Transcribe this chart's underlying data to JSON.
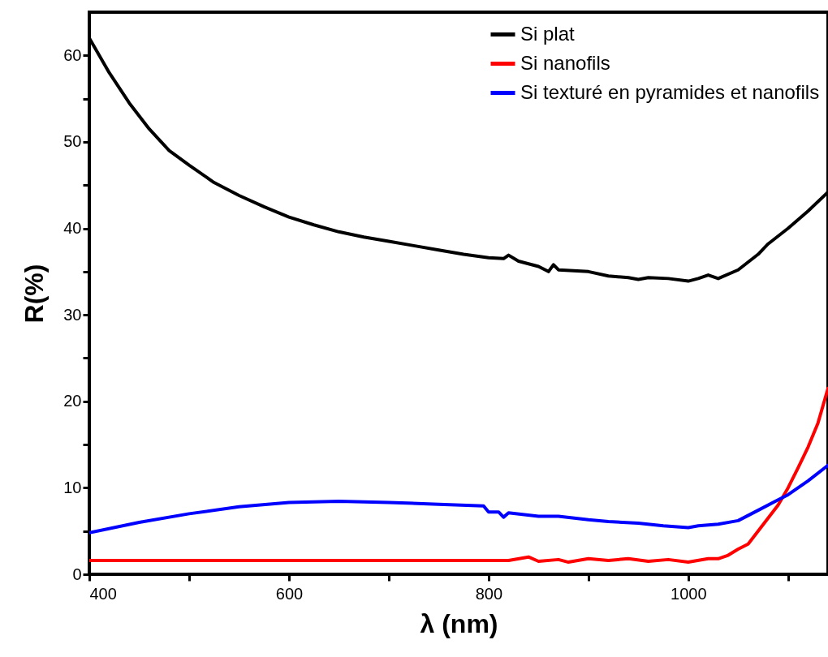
{
  "chart_data": {
    "type": "line",
    "xlabel": "λ (nm)",
    "ylabel": "R(%)",
    "xlim": [
      400,
      1140
    ],
    "ylim": [
      0,
      65
    ],
    "xticks": [
      400,
      {
        "value": 500,
        "label": null
      },
      600,
      {
        "value": 700,
        "label": null
      },
      800,
      {
        "value": 900,
        "label": null
      },
      1000,
      {
        "value": 1100,
        "label": null
      }
    ],
    "yticks": [
      0,
      {
        "value": 5,
        "label": null
      },
      10,
      {
        "value": 15,
        "label": null
      },
      20,
      {
        "value": 25,
        "label": null
      },
      30,
      {
        "value": 35,
        "label": null
      },
      40,
      {
        "value": 45,
        "label": null
      },
      50,
      {
        "value": 55,
        "label": null
      },
      60
    ],
    "legend": "top right",
    "grid": false,
    "line_style": "solid",
    "series": [
      {
        "name": "Si plat",
        "color": "#000000",
        "x": [
          400,
          420,
          440,
          460,
          480,
          500,
          525,
          550,
          575,
          600,
          625,
          650,
          675,
          700,
          725,
          750,
          775,
          800,
          815,
          820,
          830,
          850,
          860,
          865,
          870,
          900,
          920,
          940,
          950,
          960,
          980,
          1000,
          1010,
          1020,
          1030,
          1050,
          1070,
          1080,
          1100,
          1120,
          1140
        ],
        "values": [
          62,
          58,
          54.5,
          51.5,
          49,
          47.3,
          45.3,
          43.8,
          42.5,
          41.3,
          40.4,
          39.6,
          39,
          38.5,
          38,
          37.5,
          37,
          36.6,
          36.5,
          36.9,
          36.2,
          35.6,
          35,
          35.8,
          35.2,
          35,
          34.5,
          34.3,
          34.1,
          34.3,
          34.2,
          33.9,
          34.2,
          34.6,
          34.2,
          35.2,
          37,
          38.2,
          40,
          42,
          44.2
        ]
      },
      {
        "name": "Si nanofils",
        "color": "#ff0000",
        "x": [
          400,
          500,
          600,
          700,
          800,
          820,
          840,
          850,
          870,
          880,
          900,
          920,
          940,
          960,
          980,
          1000,
          1020,
          1030,
          1040,
          1050,
          1060,
          1070,
          1080,
          1090,
          1100,
          1110,
          1120,
          1130,
          1140
        ],
        "values": [
          1.6,
          1.6,
          1.6,
          1.6,
          1.6,
          1.6,
          2.0,
          1.5,
          1.7,
          1.4,
          1.8,
          1.6,
          1.8,
          1.5,
          1.7,
          1.4,
          1.8,
          1.8,
          2.2,
          2.9,
          3.5,
          5,
          6.5,
          8,
          10,
          12.3,
          14.7,
          17.5,
          21.5
        ]
      },
      {
        "name": "Si texturé en pyramides et nanofils",
        "color": "#0000ff",
        "x": [
          400,
          450,
          500,
          550,
          600,
          650,
          700,
          750,
          795,
          800,
          810,
          815,
          820,
          850,
          870,
          900,
          920,
          950,
          975,
          1000,
          1010,
          1030,
          1050,
          1070,
          1090,
          1100,
          1120,
          1140
        ],
        "values": [
          4.8,
          6,
          7,
          7.8,
          8.3,
          8.45,
          8.3,
          8.1,
          7.9,
          7.2,
          7.2,
          6.6,
          7.1,
          6.7,
          6.7,
          6.3,
          6.1,
          5.9,
          5.6,
          5.4,
          5.6,
          5.8,
          6.2,
          7.4,
          8.6,
          9.2,
          10.8,
          12.6
        ]
      }
    ]
  }
}
